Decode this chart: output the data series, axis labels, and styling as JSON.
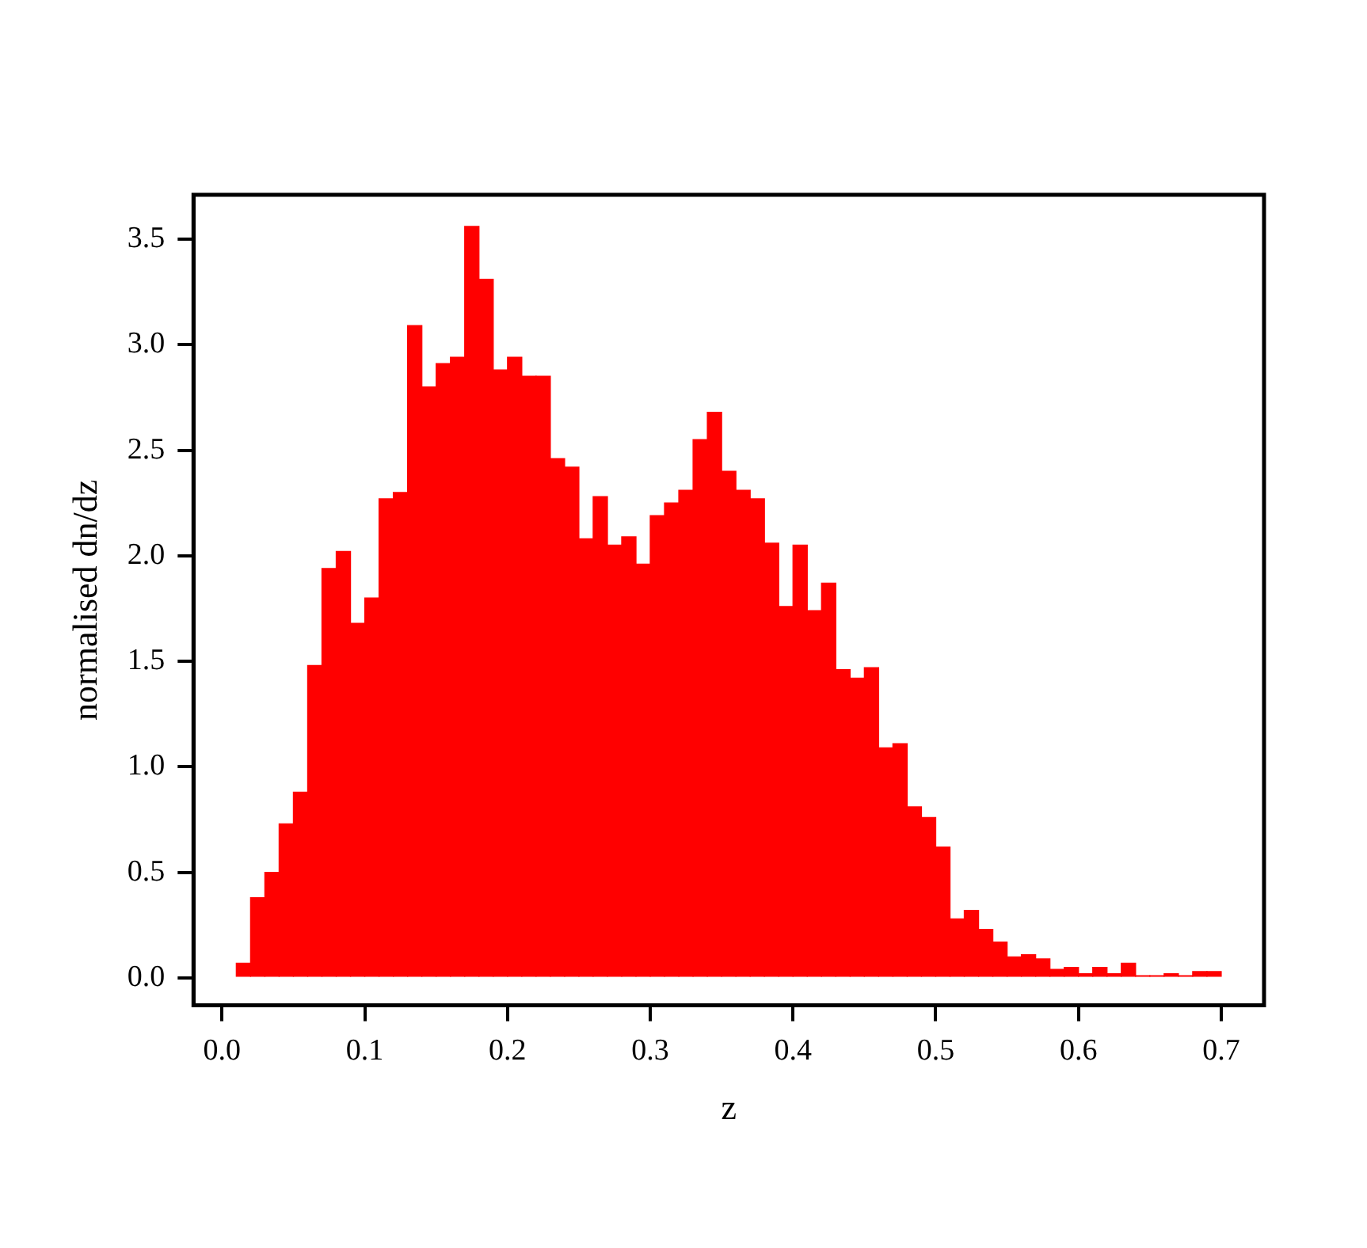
{
  "chart_data": {
    "type": "histogram",
    "xlabel": "z",
    "ylabel": "normalised dn/dz",
    "bins": [
      0.01,
      0.02,
      0.03,
      0.04,
      0.05,
      0.06,
      0.07,
      0.08,
      0.09,
      0.1,
      0.11,
      0.12,
      0.13,
      0.14,
      0.15,
      0.16,
      0.17,
      0.18,
      0.19,
      0.2,
      0.21,
      0.22,
      0.23,
      0.24,
      0.25,
      0.26,
      0.27,
      0.28,
      0.29,
      0.3,
      0.31,
      0.32,
      0.33,
      0.34,
      0.35,
      0.36,
      0.37,
      0.38,
      0.39,
      0.4,
      0.41,
      0.42,
      0.43,
      0.44,
      0.45,
      0.46,
      0.47,
      0.48,
      0.49,
      0.5,
      0.51,
      0.52,
      0.53,
      0.54,
      0.55,
      0.56,
      0.57,
      0.58,
      0.59,
      0.6,
      0.61,
      0.62,
      0.63,
      0.64,
      0.65,
      0.66,
      0.67,
      0.68,
      0.69,
      0.7
    ],
    "values": [
      0.07,
      0.38,
      0.5,
      0.73,
      0.88,
      1.48,
      1.94,
      2.02,
      1.68,
      1.8,
      2.27,
      2.3,
      3.09,
      2.8,
      2.91,
      2.94,
      3.56,
      3.31,
      2.88,
      2.94,
      2.85,
      2.85,
      2.46,
      2.42,
      2.08,
      2.28,
      2.05,
      2.09,
      1.96,
      2.19,
      2.25,
      2.31,
      2.55,
      2.68,
      2.4,
      2.31,
      2.27,
      2.06,
      1.76,
      2.05,
      1.74,
      1.87,
      1.46,
      1.42,
      1.47,
      1.09,
      1.11,
      0.81,
      0.76,
      0.62,
      0.28,
      0.32,
      0.23,
      0.17,
      0.1,
      0.11,
      0.09,
      0.04,
      0.05,
      0.02,
      0.05,
      0.02,
      0.07,
      0.01,
      0.01,
      0.02,
      0.01,
      0.03,
      0.03
    ],
    "color": "#ff0000",
    "xlim": [
      -0.02,
      0.73
    ],
    "xticks": [
      {
        "value": 0,
        "label": "0.0"
      },
      0.1,
      0.2,
      0.3,
      0.4,
      0.5,
      0.6,
      0.7
    ],
    "ylim": [
      -0.13,
      3.71
    ],
    "yticks": [
      {
        "value": 0,
        "label": "0.0"
      },
      0.5,
      {
        "value": 1,
        "label": "1.0"
      },
      1.5,
      {
        "value": 2,
        "label": "2.0"
      },
      2.5,
      {
        "value": 3,
        "label": "3.0"
      },
      3.5
    ],
    "grid": false,
    "legend": false
  }
}
